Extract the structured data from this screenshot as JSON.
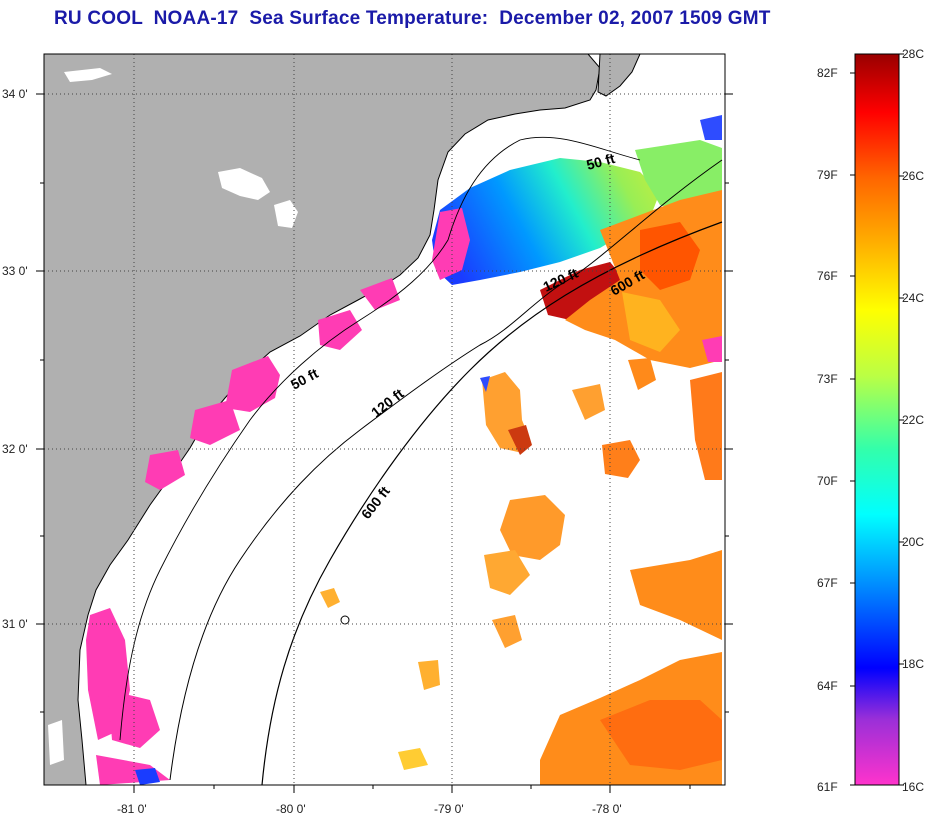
{
  "title": "RU COOL  NOAA-17  Sea Surface Temperature:  December 02, 2007 1509 GMT",
  "map": {
    "lat_labels": [
      "34 0'",
      "33 0'",
      "32 0'",
      "31 0'"
    ],
    "lon_labels": [
      "-81 0'",
      "-80 0'",
      "-79 0'",
      "-78 0'"
    ],
    "isobath_labels": [
      "50 ft",
      "50 ft",
      "120 ft",
      "120 ft",
      "600 ft",
      "600 ft"
    ],
    "colors": {
      "land": "#b0b0b0",
      "coastline": "#000000",
      "grid": "#555555"
    }
  },
  "colorbar": {
    "fahrenheit_labels": [
      "82F",
      "79F",
      "76F",
      "73F",
      "70F",
      "67F",
      "64F",
      "61F"
    ],
    "celsius_labels": [
      "28C",
      "26C",
      "24C",
      "22C",
      "20C",
      "18C",
      "16C"
    ],
    "range_c": [
      16,
      28
    ],
    "stops": [
      "#ff33cc",
      "#9a2fd8",
      "#0000ff",
      "#0088ff",
      "#00ffff",
      "#33ffaa",
      "#bbff44",
      "#ffff00",
      "#ffb000",
      "#ff6600",
      "#ff0000",
      "#990000"
    ]
  }
}
